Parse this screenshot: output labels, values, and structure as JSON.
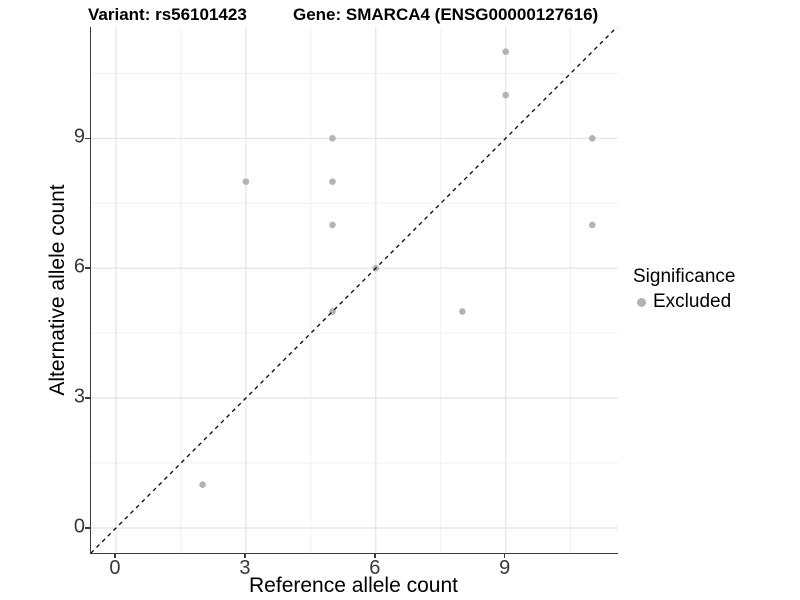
{
  "title": {
    "variant": "Variant: rs56101423",
    "gene": "Gene: SMARCA4 (ENSG00000127616)"
  },
  "axes": {
    "x": {
      "label": "Reference allele count",
      "tick_labels": [
        "0",
        "3",
        "6",
        "9"
      ]
    },
    "y": {
      "label": "Alternative allele count",
      "tick_labels": [
        "0",
        "3",
        "6",
        "9"
      ]
    }
  },
  "legend": {
    "title": "Significance",
    "items": [
      {
        "label": "Excluded",
        "color": "#b3b3b3"
      }
    ]
  },
  "colors": {
    "point": "#b3b3b3",
    "grid_major": "#e4e4e4",
    "grid_minor": "#f0f0f0",
    "axis_line": "#3c3c3c",
    "reference_line": "#000000",
    "background": "#ffffff"
  },
  "chart_data": {
    "type": "scatter",
    "title": "Variant: rs56101423        Gene: SMARCA4 (ENSG00000127616)",
    "xlabel": "Reference allele count",
    "ylabel": "Alternative allele count",
    "xlim": [
      -0.58,
      11.58
    ],
    "ylim": [
      -0.58,
      11.58
    ],
    "x_major_ticks": [
      0,
      3,
      6,
      9
    ],
    "y_major_ticks": [
      0,
      3,
      6,
      9
    ],
    "x_minor_ticks": [
      1.5,
      4.5,
      7.5,
      10.5
    ],
    "y_minor_ticks": [
      1.5,
      4.5,
      7.5,
      10.5
    ],
    "grid": true,
    "legend_position": "right",
    "series": [
      {
        "name": "Excluded",
        "color": "#b3b3b3",
        "points": [
          [
            2,
            1
          ],
          [
            3,
            8
          ],
          [
            5,
            5
          ],
          [
            5,
            7
          ],
          [
            5,
            8
          ],
          [
            5,
            9
          ],
          [
            6,
            6
          ],
          [
            8,
            5
          ],
          [
            9,
            10
          ],
          [
            9,
            11
          ],
          [
            11,
            7
          ],
          [
            11,
            9
          ]
        ]
      }
    ],
    "reference_line": {
      "type": "identity",
      "slope": 1,
      "intercept": 0,
      "style": "dashed",
      "color": "#000000"
    }
  }
}
